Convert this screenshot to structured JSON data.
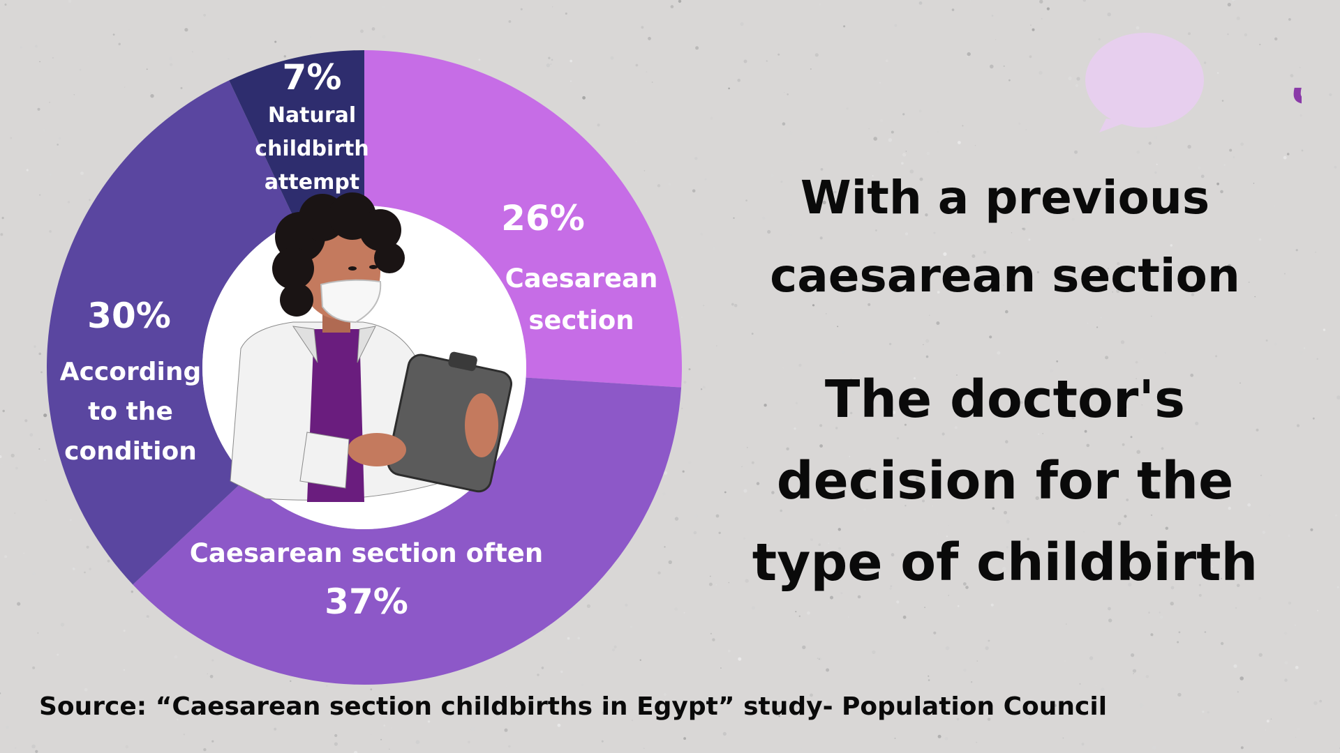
{
  "chart_data": {
    "type": "pie",
    "slices": [
      {
        "label_lines": [
          "Caesarean",
          "section"
        ],
        "value": 26,
        "value_label": "26%",
        "color": "#c66de6"
      },
      {
        "label_lines": [
          "Caesarean section often"
        ],
        "value": 37,
        "value_label": "37%",
        "color": "#8d58c8"
      },
      {
        "label_lines": [
          "According",
          "to the",
          "condition"
        ],
        "value": 30,
        "value_label": "30%",
        "color": "#5a46a0"
      },
      {
        "label_lines": [
          "Natural",
          "childbirth",
          "attempt"
        ],
        "value": 7,
        "value_label": "7%",
        "color": "#2e2d6e"
      }
    ]
  },
  "text": {
    "subtitle": [
      "With a previous",
      "caesarean section"
    ],
    "title": [
      "The doctor's",
      "decision for the",
      "type of childbirth"
    ],
    "source": "Source: “Caesarean section childbirths in Egypt” study- Population Council"
  },
  "logo": {
    "text": "شبكة ولكن",
    "bubble_color": "#e7cfee",
    "text_color": "#8a3aa8"
  },
  "illustration": {
    "name": "doctor with clipboard",
    "accent_color": "#6a1d7e"
  }
}
